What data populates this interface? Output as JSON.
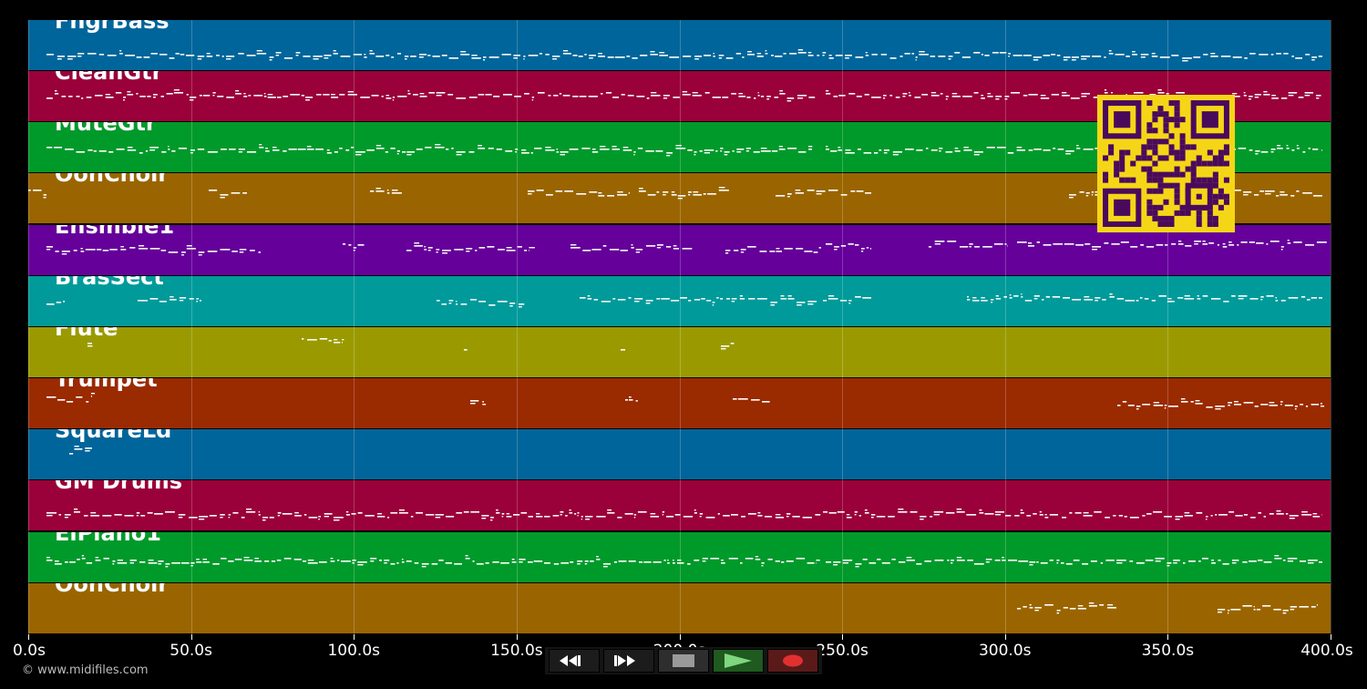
{
  "tracks": [
    {
      "name": "FngrBass",
      "color": "#00659a"
    },
    {
      "name": "CleanGtr",
      "color": "#9a0039"
    },
    {
      "name": "MuteGtr",
      "color": "#009a2a"
    },
    {
      "name": "OohChoir",
      "color": "#9a6500"
    },
    {
      "name": "Ensmble1",
      "color": "#65009a"
    },
    {
      "name": "BrasSect",
      "color": "#009a9a"
    },
    {
      "name": "Flute",
      "color": "#9a9a00"
    },
    {
      "name": "Trumpet",
      "color": "#9a2a00"
    },
    {
      "name": "SquareLd",
      "color": "#00659a"
    },
    {
      "name": "GM Drums",
      "color": "#9a0039"
    },
    {
      "name": "ElPiano1",
      "color": "#009a2a"
    },
    {
      "name": "OohChoir",
      "color": "#9a6500"
    }
  ],
  "timeline": {
    "ticks": [
      "0.0s",
      "50.0s",
      "100.0s",
      "150.0s",
      "200.0s",
      "250.0s",
      "300.0s",
      "350.0s",
      "400.0s"
    ],
    "max_seconds": 400
  },
  "credit": "© www.midifiles.com",
  "transport": {
    "buttons": [
      "rewind",
      "fast-forward",
      "stop",
      "play",
      "record"
    ]
  },
  "colors": {
    "background": "#000000",
    "qr_background": "#f5d617",
    "qr_foreground": "#4a0a5c",
    "play": "#7fd67f",
    "record": "#e03030"
  }
}
